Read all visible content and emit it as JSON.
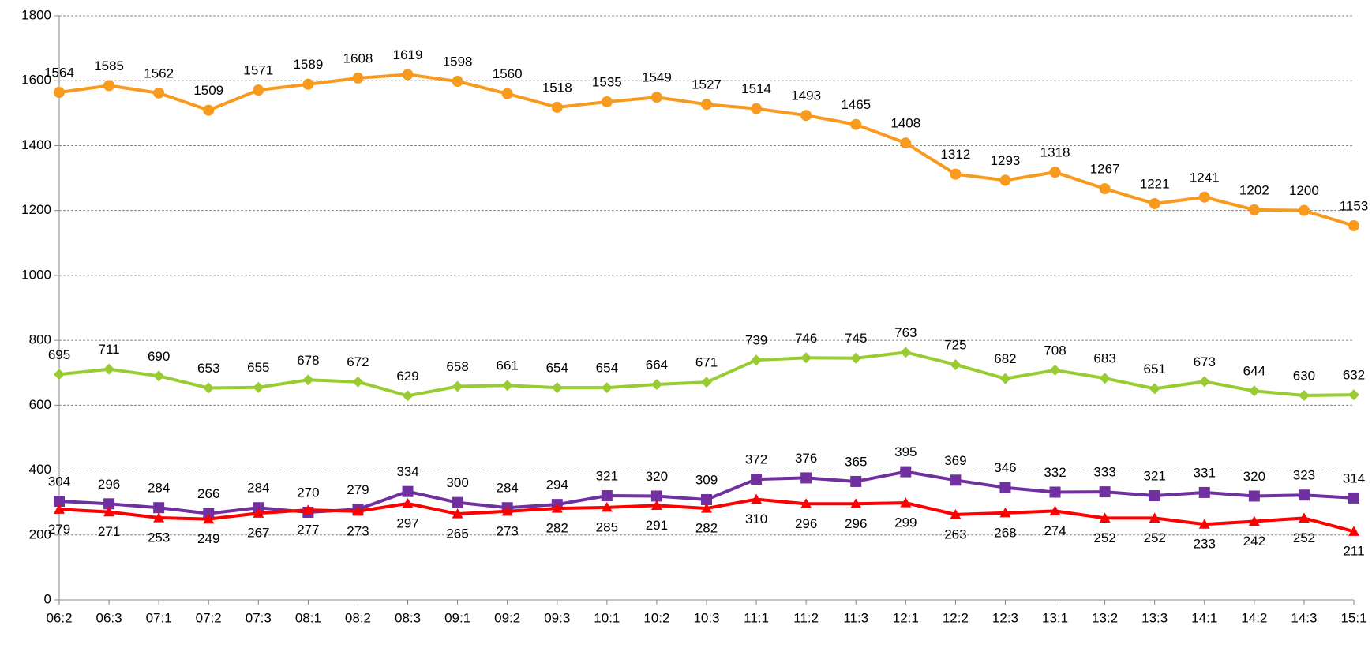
{
  "chart_data": {
    "type": "line",
    "categories": [
      "06:2",
      "06:3",
      "07:1",
      "07:2",
      "07:3",
      "08:1",
      "08:2",
      "08:3",
      "09:1",
      "09:2",
      "09:3",
      "10:1",
      "10:2",
      "10:3",
      "11:1",
      "11:2",
      "11:3",
      "12:1",
      "12:2",
      "12:3",
      "13:1",
      "13:2",
      "13:3",
      "14:1",
      "14:2",
      "14:3",
      "15:1"
    ],
    "series": [
      {
        "color": "#f79a1e",
        "marker": "circle",
        "label_position": "above",
        "values": [
          1564,
          1585,
          1562,
          1509,
          1571,
          1589,
          1608,
          1619,
          1598,
          1560,
          1518,
          1535,
          1549,
          1527,
          1514,
          1493,
          1465,
          1408,
          1312,
          1293,
          1318,
          1267,
          1221,
          1241,
          1202,
          1200,
          1153
        ]
      },
      {
        "color": "#99cc33",
        "marker": "diamond",
        "label_position": "above",
        "values": [
          695,
          711,
          690,
          653,
          655,
          678,
          672,
          629,
          658,
          661,
          654,
          654,
          664,
          671,
          739,
          746,
          745,
          763,
          725,
          682,
          708,
          683,
          651,
          673,
          644,
          630,
          632
        ]
      },
      {
        "color": "#7030a0",
        "marker": "square",
        "label_position": "above",
        "values": [
          304,
          296,
          284,
          266,
          284,
          270,
          279,
          334,
          300,
          284,
          294,
          321,
          320,
          309,
          372,
          376,
          365,
          395,
          369,
          346,
          332,
          333,
          321,
          331,
          320,
          323,
          314
        ]
      },
      {
        "color": "#ff0000",
        "marker": "triangle",
        "label_position": "below",
        "values": [
          279,
          271,
          253,
          249,
          267,
          277,
          273,
          297,
          265,
          273,
          282,
          285,
          291,
          282,
          310,
          296,
          296,
          299,
          263,
          268,
          274,
          252,
          252,
          233,
          242,
          252,
          211
        ]
      }
    ],
    "ylim": [
      0,
      1800
    ],
    "yticks": [
      0,
      200,
      400,
      600,
      800,
      1000,
      1200,
      1400,
      1600,
      1800
    ],
    "grid": true
  }
}
